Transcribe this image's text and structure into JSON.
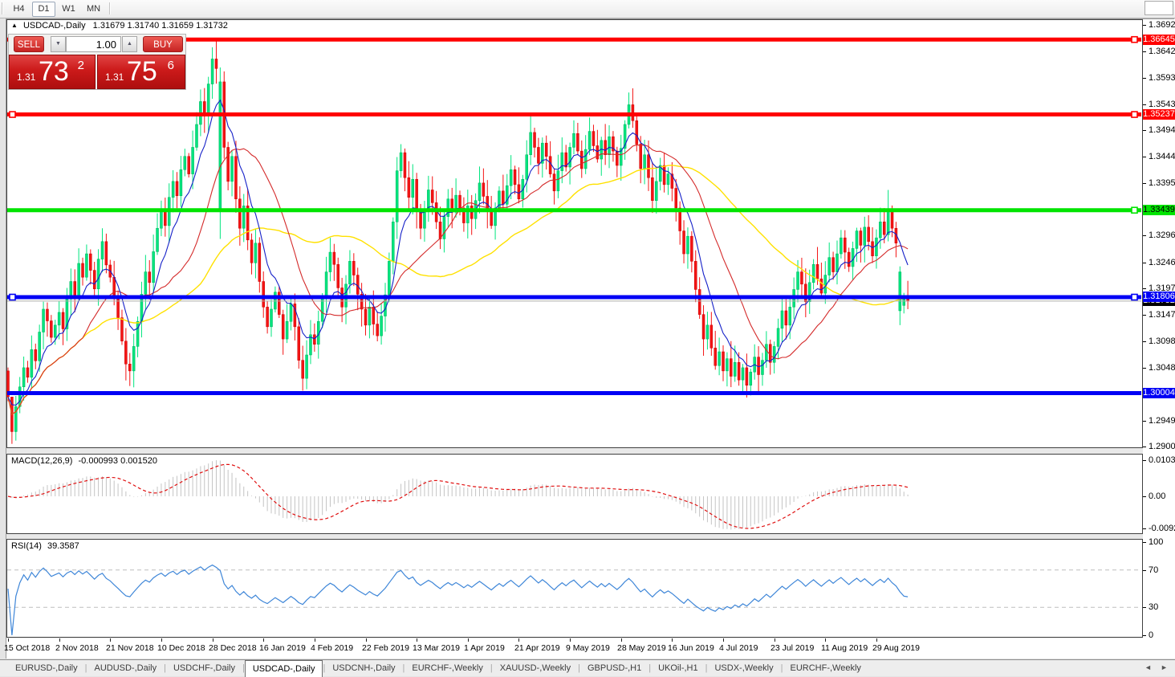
{
  "toolbar": {
    "timeframes": [
      "H4",
      "D1",
      "W1",
      "MN"
    ],
    "active": "D1"
  },
  "icons": {
    "collapse": "▲",
    "spin_up": "▲",
    "spin_down": "▼",
    "tab_prev": "◄",
    "tab_next": "►"
  },
  "chart": {
    "title_symbol": "USDCAD-,Daily",
    "title_ohlc": "1.31679 1.31740 1.31659 1.31732"
  },
  "trade_panel": {
    "sell_label": "SELL",
    "buy_label": "BUY",
    "volume": "1.00",
    "sell_price": {
      "prefix": "1.31",
      "big": "73",
      "sup": "2"
    },
    "buy_price": {
      "prefix": "1.31",
      "big": "75",
      "sup": "6"
    }
  },
  "tabs": {
    "items": [
      "EURUSD-,Daily",
      "AUDUSD-,Daily",
      "USDCHF-,Daily",
      "USDCAD-,Daily",
      "USDCNH-,Daily",
      "EURCHF-,Weekly",
      "XAUUSD-,Weekly",
      "GBPUSD-,H1",
      "UKOil-,H1",
      "USDX-,Weekly",
      "EURCHF-,Weekly"
    ],
    "active_index": 3
  },
  "colors": {
    "bull": "#00E57E",
    "bull_edge": "#00B35F",
    "bear": "#F41414",
    "bear_edge": "#CC0000",
    "ma_fast": "#1520C8",
    "ma_mid": "#D42A2A",
    "ma_slow": "#FFE100",
    "macd_hist": "#C4C4C4",
    "macd_signal": "#E01010",
    "rsi": "#3E86D8",
    "level_dash": "#BEBEBE",
    "cur_price_line": "#ACACAC",
    "panel_border": "#404040"
  },
  "chart_data": {
    "type": "candlestick",
    "symbol": "USDCAD",
    "period": "Daily",
    "price_axis_ticks": [
      "1.36920",
      "1.36420",
      "1.35930",
      "1.35430",
      "1.34940",
      "1.34440",
      "1.33950",
      "1.32960",
      "1.32460",
      "1.31970",
      "1.31470",
      "1.30980",
      "1.30480",
      "1.29490",
      "1.29000"
    ],
    "hlines": [
      {
        "price": 1.36645,
        "label": "1.36645",
        "color": "#FF0000",
        "text_color": "#FFFFFF",
        "handles": [
          "right"
        ]
      },
      {
        "price": 1.35237,
        "label": "1.35237",
        "color": "#FF0000",
        "text_color": "#FFFFFF",
        "handles": [
          "left",
          "right"
        ]
      },
      {
        "price": 1.33439,
        "label": "1.33439",
        "color": "#00E400",
        "text_color": "#000000",
        "handles": [
          "right"
        ]
      },
      {
        "price": 1.31806,
        "label": "1.31806",
        "color": "#0000F5",
        "text_color": "#FFFFFF",
        "handles": [
          "left",
          "right"
        ]
      },
      {
        "price": 1.30004,
        "label": "1.30004",
        "color": "#0000F5",
        "text_color": "#FFFFFF",
        "handles": []
      }
    ],
    "current_price": {
      "value": 1.31732,
      "label": "1.31732"
    },
    "x_labels": [
      "15 Oct 2018",
      "2 Nov 2018",
      "21 Nov 2018",
      "10 Dec 2018",
      "28 Dec 2018",
      "16 Jan 2019",
      "4 Feb 2019",
      "22 Feb 2019",
      "13 Mar 2019",
      "1 Apr 2019",
      "21 Apr 2019",
      "9 May 2019",
      "28 May 2019",
      "16 Jun 2019",
      "4 Jul 2019",
      "23 Jul 2019",
      "11 Aug 2019",
      "29 Aug 2019"
    ],
    "x_label_step": 13,
    "candles": {
      "closes": [
        1.2993,
        1.2928,
        1.2975,
        1.3012,
        1.3048,
        1.303,
        1.3082,
        1.3061,
        1.3115,
        1.3158,
        1.3136,
        1.3105,
        1.3128,
        1.3152,
        1.3121,
        1.3177,
        1.321,
        1.3183,
        1.3244,
        1.3218,
        1.3262,
        1.3231,
        1.3196,
        1.3252,
        1.3285,
        1.3241,
        1.3218,
        1.318,
        1.3142,
        1.3098,
        1.3055,
        1.3042,
        1.3088,
        1.3135,
        1.3186,
        1.3228,
        1.3208,
        1.3266,
        1.331,
        1.3342,
        1.3315,
        1.3368,
        1.3398,
        1.3371,
        1.342,
        1.3445,
        1.3412,
        1.3462,
        1.3505,
        1.3548,
        1.3522,
        1.3581,
        1.3628,
        1.361,
        1.3585,
        1.3462,
        1.3398,
        1.3445,
        1.3365,
        1.331,
        1.3352,
        1.3288,
        1.3245,
        1.3282,
        1.321,
        1.3162,
        1.3125,
        1.3158,
        1.319,
        1.3148,
        1.3102,
        1.3135,
        1.3168,
        1.3125,
        1.3062,
        1.3028,
        1.3072,
        1.311,
        1.3092,
        1.3135,
        1.318,
        1.3228,
        1.3265,
        1.3242,
        1.3198,
        1.3162,
        1.3205,
        1.3248,
        1.3222,
        1.3186,
        1.3158,
        1.3128,
        1.3162,
        1.313,
        1.3108,
        1.3145,
        1.3185,
        1.3248,
        1.3322,
        1.3418,
        1.3452,
        1.3405,
        1.3368,
        1.3402,
        1.3342,
        1.331,
        1.3345,
        1.3382,
        1.3358,
        1.3322,
        1.329,
        1.3332,
        1.3365,
        1.334,
        1.3372,
        1.3348,
        1.332,
        1.3352,
        1.3328,
        1.3362,
        1.3395,
        1.337,
        1.3342,
        1.3315,
        1.3348,
        1.338,
        1.3355,
        1.339,
        1.342,
        1.3392,
        1.3365,
        1.3402,
        1.3448,
        1.349,
        1.3462,
        1.3432,
        1.347,
        1.3445,
        1.3412,
        1.338,
        1.3418,
        1.3452,
        1.3425,
        1.3462,
        1.3488,
        1.3455,
        1.3422,
        1.3458,
        1.3492,
        1.3465,
        1.344,
        1.3475,
        1.3448,
        1.3482,
        1.3455,
        1.3428,
        1.346,
        1.3505,
        1.3542,
        1.3512,
        1.3468,
        1.3422,
        1.3448,
        1.3405,
        1.3362,
        1.3398,
        1.3428,
        1.3392,
        1.3412,
        1.3385,
        1.3348,
        1.3305,
        1.3262,
        1.3295,
        1.3248,
        1.3195,
        1.3148,
        1.3102,
        1.3128,
        1.3085,
        1.3052,
        1.3078,
        1.3042,
        1.3065,
        1.3032,
        1.3058,
        1.3025,
        1.3048,
        1.3015,
        1.304,
        1.3068,
        1.3035,
        1.3062,
        1.3092,
        1.3058,
        1.3088,
        1.3122,
        1.3155,
        1.3128,
        1.3162,
        1.3195,
        1.3228,
        1.3205,
        1.3172,
        1.3208,
        1.3242,
        1.3215,
        1.3188,
        1.3222,
        1.3255,
        1.3228,
        1.3262,
        1.3292,
        1.3265,
        1.3238,
        1.3272,
        1.3305,
        1.3278,
        1.3312,
        1.3285,
        1.3258,
        1.3292,
        1.3322,
        1.3298,
        1.3345,
        1.331,
        1.3282,
        1.3228,
        1.318,
        1.3173
      ],
      "open_overrides": {
        "0": 1.3042,
        "54": 1.3345,
        "227": 1.3155,
        "228": 1.3165
      },
      "high_overrides": {
        "1": 1.2968,
        "52": 1.365,
        "53": 1.36645,
        "54": 1.3612,
        "100": 1.3468,
        "133": 1.3521,
        "158": 1.3565,
        "224": 1.3382
      },
      "low_overrides": {
        "1": 1.2905,
        "54": 1.329,
        "75": 1.3005,
        "188": 1.2992,
        "227": 1.3128,
        "229": 1.3158
      }
    },
    "moving_averages": [
      {
        "period": 8,
        "method": "ema",
        "role": "fast"
      },
      {
        "period": 20,
        "method": "sma",
        "role": "mid"
      },
      {
        "period": 50,
        "method": "sma",
        "role": "slow"
      }
    ],
    "macd": {
      "label": "MACD(12,26,9)",
      "values": "-0.000993 0.001520",
      "fast": 12,
      "slow": 26,
      "signal": 9,
      "axis_labels": [
        "0.010311",
        "0.00",
        "-0.009203"
      ],
      "axis_max": 0.010311,
      "axis_min": -0.009203
    },
    "rsi": {
      "label": "RSI(14)",
      "value": "39.3587",
      "period": 14,
      "levels": [
        70,
        30
      ],
      "axis_labels": [
        100,
        70,
        30,
        0
      ]
    }
  }
}
